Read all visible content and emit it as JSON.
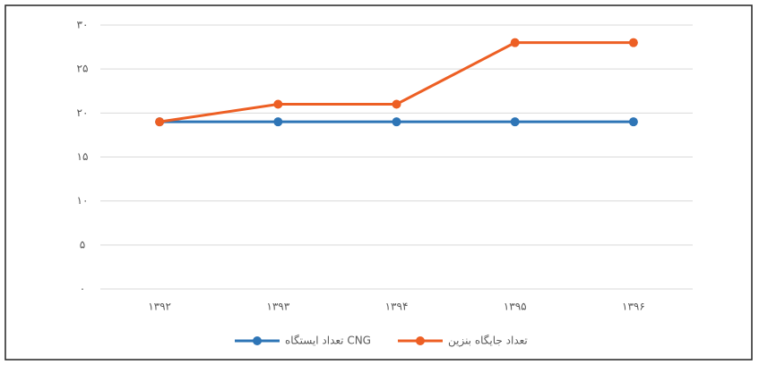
{
  "chart_data": {
    "type": "line",
    "categories": [
      "۱۳۹۲",
      "۱۳۹۳",
      "۱۳۹۴",
      "۱۳۹۵",
      "۱۳۹۶"
    ],
    "series": [
      {
        "name": "تعداد ایستگاه CNG",
        "color": "#2e75b6",
        "values": [
          19,
          19,
          19,
          19,
          19
        ]
      },
      {
        "name": "تعداد جایگاه بنزین",
        "color": "#ed5f24",
        "values": [
          19,
          21,
          21,
          28,
          28
        ]
      }
    ],
    "ylim": [
      0,
      30
    ],
    "yticks": [
      {
        "value": 0,
        "label": "۰"
      },
      {
        "value": 5,
        "label": "۵"
      },
      {
        "value": 10,
        "label": "۱۰"
      },
      {
        "value": 15,
        "label": "۱۵"
      },
      {
        "value": 20,
        "label": "۲۰"
      },
      {
        "value": 25,
        "label": "۲۵"
      },
      {
        "value": 30,
        "label": "۳۰"
      }
    ],
    "grid": true,
    "legend": "bottom"
  }
}
